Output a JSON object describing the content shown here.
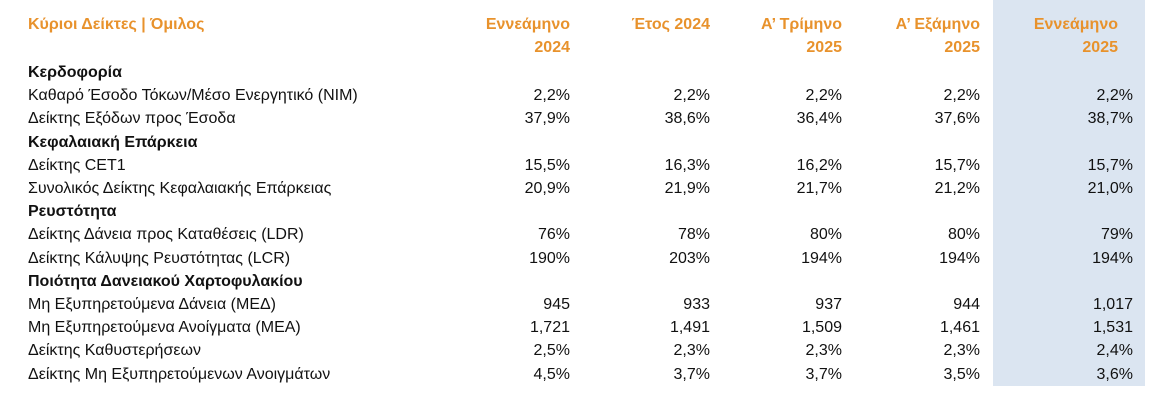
{
  "header": {
    "title": "Κύριοι Δείκτες | Όμιλος",
    "columns": [
      [
        "Εννεάμηνο",
        "2024"
      ],
      [
        "Έτος 2024"
      ],
      [
        "Α’ Τρίμηνο",
        "2025"
      ],
      [
        "Α’ Εξάμηνο",
        "2025"
      ],
      [
        "Εννεάμηνο",
        "2025"
      ]
    ]
  },
  "sections": [
    {
      "title": "Κερδοφορία",
      "rows": [
        {
          "label": "Καθαρό Έσοδο Τόκων/Μέσο Ενεργητικό (NIM)",
          "values": [
            "2,2%",
            "2,2%",
            "2,2%",
            "2,2%",
            "2,2%"
          ]
        },
        {
          "label": "Δείκτης Εξόδων προς Έσοδα",
          "values": [
            "37,9%",
            "38,6%",
            "36,4%",
            "37,6%",
            "38,7%"
          ]
        }
      ]
    },
    {
      "title": "Κεφαλαιακή Επάρκεια",
      "rows": [
        {
          "label": "Δείκτης CET1",
          "values": [
            "15,5%",
            "16,3%",
            "16,2%",
            "15,7%",
            "15,7%"
          ]
        },
        {
          "label": "Συνολικός Δείκτης Κεφαλαιακής Επάρκειας",
          "values": [
            "20,9%",
            "21,9%",
            "21,7%",
            "21,2%",
            "21,0%"
          ]
        }
      ]
    },
    {
      "title": "Ρευστότητα",
      "rows": [
        {
          "label": "Δείκτης Δάνεια προς Καταθέσεις (LDR)",
          "values": [
            "76%",
            "78%",
            "80%",
            "80%",
            "79%"
          ]
        },
        {
          "label": "Δείκτης Κάλυψης Ρευστότητας (LCR)",
          "values": [
            "190%",
            "203%",
            "194%",
            "194%",
            "194%"
          ]
        }
      ]
    },
    {
      "title": "Ποιότητα Δανειακού Χαρτοφυλακίου",
      "rows": [
        {
          "label": "Μη Εξυπηρετούμενα Δάνεια (ΜΕΔ)",
          "values": [
            "945",
            "933",
            "937",
            "944",
            "1,017"
          ]
        },
        {
          "label": "Μη Εξυπηρετούμενα Ανοίγματα (ΜΕΑ)",
          "values": [
            "1,721",
            "1,491",
            "1,509",
            "1,461",
            "1,531"
          ]
        },
        {
          "label": "Δείκτης Καθυστερήσεων",
          "values": [
            "2,5%",
            "2,3%",
            "2,3%",
            "2,3%",
            "2,4%"
          ]
        },
        {
          "label": "Δείκτης Μη Εξυπηρετούμενων Ανοιγμάτων",
          "values": [
            "4,5%",
            "3,7%",
            "3,7%",
            "3,5%",
            "3,6%"
          ]
        }
      ]
    }
  ]
}
